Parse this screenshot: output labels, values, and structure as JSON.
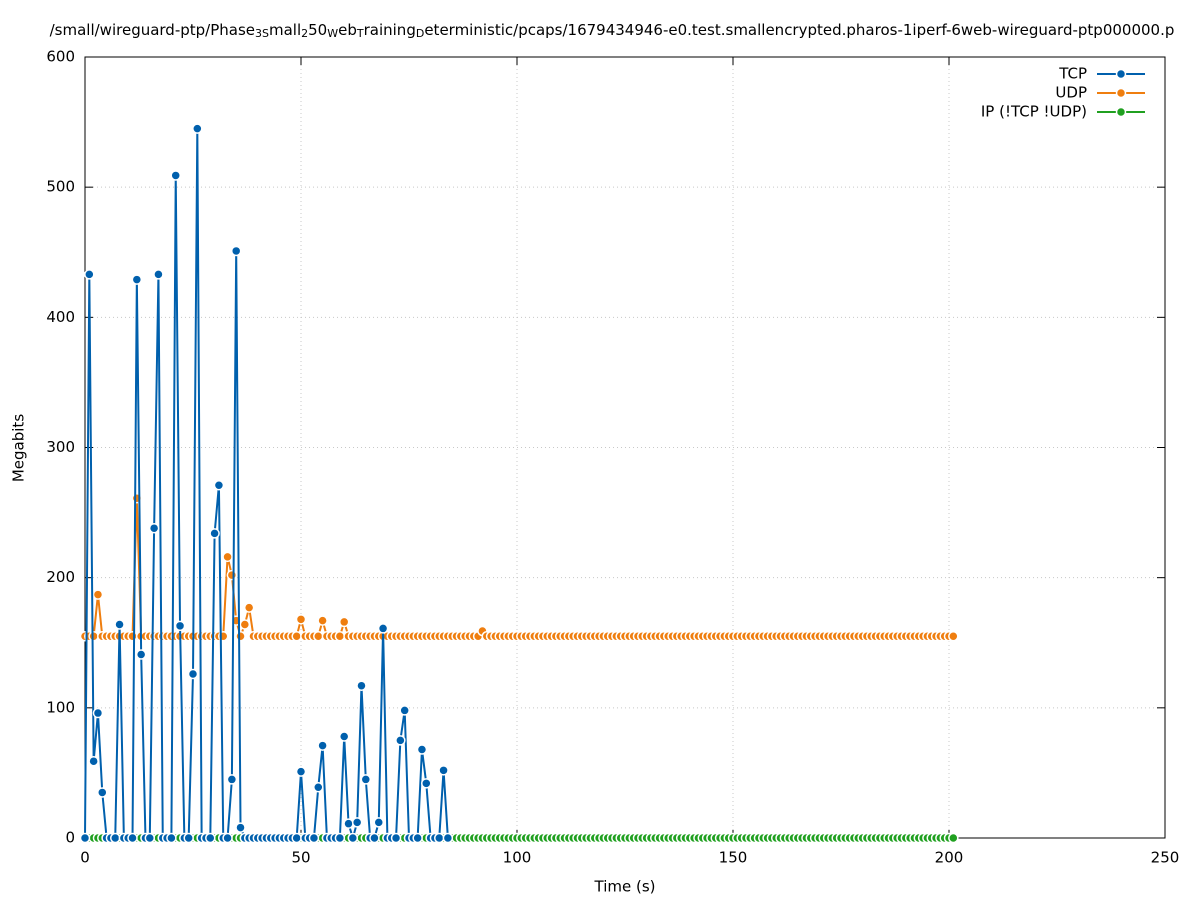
{
  "chart_data": {
    "type": "line",
    "title": [
      "/small/wireguard-ptp/Phase",
      "3S",
      "mall",
      "2",
      "50",
      "W",
      "eb",
      "T",
      "raining",
      "D",
      "eterministic/pcaps/1679434946-e0.test.smallencrypted.pharos-1iperf-6web-wireguard-ptp000000.p"
    ],
    "x_label": "Time (s)",
    "y_label": "Megabits",
    "xlim": [
      0,
      250
    ],
    "ylim": [
      0,
      600
    ],
    "xticks": [
      0,
      50,
      100,
      150,
      200,
      250
    ],
    "yticks": [
      0,
      100,
      200,
      300,
      400,
      500,
      600
    ],
    "grid": true,
    "legend": "top-right",
    "series": [
      {
        "name": "TCP",
        "color": "#0060ad",
        "x": [
          0,
          1,
          2,
          3,
          4,
          5,
          6,
          7,
          8,
          9,
          10,
          11,
          12,
          13,
          14,
          15,
          16,
          17,
          18,
          19,
          20,
          21,
          22,
          23,
          24,
          25,
          26,
          27,
          28,
          29,
          30,
          31,
          32,
          33,
          34,
          35,
          36,
          37,
          38,
          39,
          40,
          41,
          42,
          43,
          44,
          45,
          46,
          47,
          48,
          49,
          50,
          51,
          52,
          53,
          54,
          55,
          56,
          57,
          58,
          59,
          60,
          61,
          62,
          63,
          64,
          65,
          66,
          67,
          68,
          69,
          70,
          71,
          72,
          73,
          74,
          75,
          76,
          77,
          78,
          79,
          80,
          81,
          82,
          83,
          84
        ],
        "values": [
          0,
          433,
          59,
          96,
          35,
          0,
          0,
          0,
          164,
          0,
          0,
          0,
          429,
          141,
          0,
          0,
          238,
          433,
          0,
          0,
          0,
          509,
          163,
          0,
          0,
          126,
          545,
          0,
          0,
          0,
          234,
          271,
          0,
          0,
          45,
          451,
          8,
          0,
          0,
          0,
          0,
          0,
          0,
          0,
          0,
          0,
          0,
          0,
          0,
          0,
          51,
          0,
          0,
          0,
          39,
          71,
          0,
          0,
          0,
          0,
          78,
          11,
          0,
          12,
          117,
          45,
          0,
          0,
          12,
          161,
          0,
          0,
          0,
          75,
          98,
          0,
          0,
          0,
          68,
          42,
          0,
          0,
          0,
          52,
          0
        ]
      },
      {
        "name": "UDP",
        "color": "#ef7e0f",
        "x": [
          0,
          1,
          2,
          3,
          4,
          5,
          6,
          7,
          8,
          9,
          10,
          11,
          12,
          13,
          14,
          15,
          16,
          17,
          18,
          19,
          20,
          21,
          22,
          23,
          24,
          25,
          26,
          27,
          28,
          29,
          30,
          31,
          32,
          33,
          34,
          35,
          36,
          37,
          38,
          39,
          40,
          41,
          42,
          43,
          44,
          45,
          46,
          47,
          48,
          49,
          50,
          51,
          52,
          53,
          54,
          55,
          56,
          57,
          58,
          59,
          60,
          61,
          62,
          63,
          64,
          65,
          66,
          67,
          68,
          69,
          70,
          71,
          72,
          73,
          74,
          75,
          76,
          77,
          78,
          79,
          80,
          81,
          82,
          83,
          84,
          85,
          86,
          87,
          88,
          89,
          90,
          91,
          92,
          93,
          94,
          95,
          96,
          97,
          98,
          99,
          100,
          101,
          102,
          103,
          104,
          105,
          106,
          107,
          108,
          109,
          110,
          111,
          112,
          113,
          114,
          115,
          116,
          117,
          118,
          119,
          120,
          121,
          122,
          123,
          124,
          125,
          126,
          127,
          128,
          129,
          130,
          131,
          132,
          133,
          134,
          135,
          136,
          137,
          138,
          139,
          140,
          141,
          142,
          143,
          144,
          145,
          146,
          147,
          148,
          149,
          150,
          151,
          152,
          153,
          154,
          155,
          156,
          157,
          158,
          159,
          160,
          161,
          162,
          163,
          164,
          165,
          166,
          167,
          168,
          169,
          170,
          171,
          172,
          173,
          174,
          175,
          176,
          177,
          178,
          179,
          180,
          181,
          182,
          183,
          184,
          185,
          186,
          187,
          188,
          189,
          190,
          191,
          192,
          193,
          194,
          195,
          196,
          197,
          198,
          199,
          200,
          201
        ],
        "values": [
          155,
          155,
          155,
          187,
          155,
          155,
          155,
          155,
          155,
          155,
          155,
          155,
          261,
          155,
          155,
          155,
          155,
          155,
          155,
          155,
          155,
          155,
          155,
          155,
          155,
          155,
          155,
          155,
          155,
          155,
          155,
          155,
          155,
          216,
          202,
          167,
          155,
          164,
          177,
          155,
          155,
          155,
          155,
          155,
          155,
          155,
          155,
          155,
          155,
          155,
          168,
          155,
          155,
          155,
          155,
          167,
          155,
          155,
          155,
          155,
          166,
          155,
          155,
          155,
          155,
          155,
          155,
          155,
          155,
          155,
          155,
          155,
          155,
          155,
          155,
          155,
          155,
          155,
          155,
          155,
          155,
          155,
          155,
          155,
          155,
          155,
          155,
          155,
          155,
          155,
          155,
          155,
          159,
          155,
          155,
          155,
          155,
          155,
          155,
          155,
          155,
          155,
          155,
          155,
          155,
          155,
          155,
          155,
          155,
          155,
          155,
          155,
          155,
          155,
          155,
          155,
          155,
          155,
          155,
          155,
          155,
          155,
          155,
          155,
          155,
          155,
          155,
          155,
          155,
          155,
          155,
          155,
          155,
          155,
          155,
          155,
          155,
          155,
          155,
          155,
          155,
          155,
          155,
          155,
          155,
          155,
          155,
          155,
          155,
          155,
          155,
          155,
          155,
          155,
          155,
          155,
          155,
          155,
          155,
          155,
          155,
          155,
          155,
          155,
          155,
          155,
          155,
          155,
          155,
          155,
          155,
          155,
          155,
          155,
          155,
          155,
          155,
          155,
          155,
          155,
          155,
          155,
          155,
          155,
          155,
          155,
          155,
          155,
          155,
          155,
          155,
          155,
          155,
          155,
          155,
          155,
          155,
          155,
          155,
          155,
          155,
          155
        ]
      },
      {
        "name": "IP (!TCP  !UDP)",
        "color": "#20a020",
        "x": [
          0,
          1,
          2,
          3,
          4,
          5,
          6,
          7,
          8,
          9,
          10,
          11,
          12,
          13,
          14,
          15,
          16,
          17,
          18,
          19,
          20,
          21,
          22,
          23,
          24,
          25,
          26,
          27,
          28,
          29,
          30,
          31,
          32,
          33,
          34,
          35,
          36,
          37,
          38,
          39,
          40,
          41,
          42,
          43,
          44,
          45,
          46,
          47,
          48,
          49,
          50,
          51,
          52,
          53,
          54,
          55,
          56,
          57,
          58,
          59,
          60,
          61,
          62,
          63,
          64,
          65,
          66,
          67,
          68,
          69,
          70,
          71,
          72,
          73,
          74,
          75,
          76,
          77,
          78,
          79,
          80,
          81,
          82,
          83,
          84,
          85,
          86,
          87,
          88,
          89,
          90,
          91,
          92,
          93,
          94,
          95,
          96,
          97,
          98,
          99,
          100,
          101,
          102,
          103,
          104,
          105,
          106,
          107,
          108,
          109,
          110,
          111,
          112,
          113,
          114,
          115,
          116,
          117,
          118,
          119,
          120,
          121,
          122,
          123,
          124,
          125,
          126,
          127,
          128,
          129,
          130,
          131,
          132,
          133,
          134,
          135,
          136,
          137,
          138,
          139,
          140,
          141,
          142,
          143,
          144,
          145,
          146,
          147,
          148,
          149,
          150,
          151,
          152,
          153,
          154,
          155,
          156,
          157,
          158,
          159,
          160,
          161,
          162,
          163,
          164,
          165,
          166,
          167,
          168,
          169,
          170,
          171,
          172,
          173,
          174,
          175,
          176,
          177,
          178,
          179,
          180,
          181,
          182,
          183,
          184,
          185,
          186,
          187,
          188,
          189,
          190,
          191,
          192,
          193,
          194,
          195,
          196,
          197,
          198,
          199,
          200,
          201
        ],
        "values": [
          0,
          0,
          0,
          0,
          0,
          0,
          0,
          0,
          0,
          0,
          0,
          0,
          0,
          0,
          0,
          0,
          0,
          0,
          0,
          0,
          0,
          0,
          0,
          0,
          0,
          0,
          0,
          0,
          0,
          0,
          0,
          0,
          0,
          0,
          0,
          0,
          0,
          0,
          0,
          0,
          0,
          0,
          0,
          0,
          0,
          0,
          0,
          0,
          0,
          0,
          0,
          0,
          0,
          0,
          0,
          0,
          0,
          0,
          0,
          0,
          0,
          0,
          0,
          0,
          0,
          0,
          0,
          0,
          0,
          0,
          0,
          0,
          0,
          0,
          0,
          0,
          0,
          0,
          0,
          0,
          0,
          0,
          0,
          0,
          0,
          0,
          0,
          0,
          0,
          0,
          0,
          0,
          0,
          0,
          0,
          0,
          0,
          0,
          0,
          0,
          0,
          0,
          0,
          0,
          0,
          0,
          0,
          0,
          0,
          0,
          0,
          0,
          0,
          0,
          0,
          0,
          0,
          0,
          0,
          0,
          0,
          0,
          0,
          0,
          0,
          0,
          0,
          0,
          0,
          0,
          0,
          0,
          0,
          0,
          0,
          0,
          0,
          0,
          0,
          0,
          0,
          0,
          0,
          0,
          0,
          0,
          0,
          0,
          0,
          0,
          0,
          0,
          0,
          0,
          0,
          0,
          0,
          0,
          0,
          0,
          0,
          0,
          0,
          0,
          0,
          0,
          0,
          0,
          0,
          0,
          0,
          0,
          0,
          0,
          0,
          0,
          0,
          0,
          0,
          0,
          0,
          0,
          0,
          0,
          0,
          0,
          0,
          0,
          0,
          0,
          0,
          0,
          0,
          0,
          0,
          0,
          0,
          0,
          0,
          0,
          0,
          0
        ]
      }
    ]
  }
}
